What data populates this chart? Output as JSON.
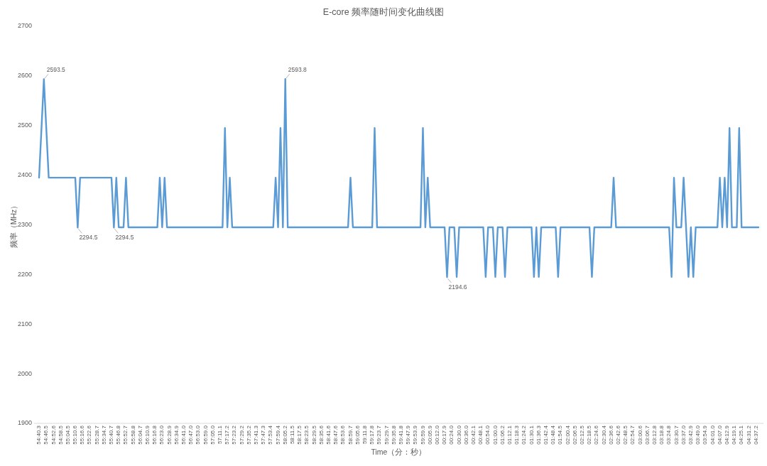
{
  "chart_data": {
    "type": "line",
    "title": "E-core 频率随时间变化曲线图",
    "xlabel": "Time（分：秒）",
    "ylabel": "频率（MHz）",
    "categories": [
      "54:40.3",
      null,
      null,
      "54:46.5",
      null,
      null,
      "54:52.6",
      null,
      null,
      "54:58.5",
      null,
      null,
      "55:04.5",
      null,
      null,
      "55:10.6",
      null,
      null,
      "55:16.6",
      null,
      null,
      "55:22.6",
      null,
      null,
      "55:28.7",
      null,
      null,
      "55:34.7",
      null,
      null,
      "55:40.7",
      null,
      null,
      "55:46.8",
      null,
      null,
      "55:52.7",
      null,
      null,
      "55:58.8",
      null,
      null,
      "56:04.7",
      null,
      null,
      "56:10.9",
      null,
      null,
      "56:16.8",
      null,
      null,
      "56:23.0",
      null,
      null,
      "56:28.9",
      null,
      null,
      "56:34.9",
      null,
      null,
      "56:41.0",
      null,
      null,
      "56:47.0",
      null,
      null,
      "56:53.0",
      null,
      null,
      "56:59.0",
      null,
      null,
      "57:05.0",
      null,
      null,
      "57:11.1",
      null,
      null,
      "57:17.2",
      null,
      null,
      "57:23.2",
      null,
      null,
      "57:29.2",
      null,
      null,
      "57:35.2",
      null,
      null,
      "57:41.3",
      null,
      null,
      "57:47.3",
      null,
      null,
      "57:53.4",
      null,
      null,
      "57:59.4",
      null,
      null,
      "58:05.2",
      null,
      null,
      "58:11.5",
      null,
      null,
      "58:17.5",
      null,
      null,
      "58:23.5",
      null,
      null,
      "58:29.5",
      null,
      null,
      "58:35.6",
      null,
      null,
      "58:41.6",
      null,
      null,
      "58:47.6",
      null,
      null,
      "58:53.6",
      null,
      null,
      "58:59.7",
      null,
      null,
      "59:05.6",
      null,
      null,
      "59:11.8",
      null,
      null,
      "59:17.8",
      null,
      null,
      "59:23.7",
      null,
      null,
      "59:29.7",
      null,
      null,
      "59:35.8",
      null,
      null,
      "59:41.8",
      null,
      null,
      "59:47.9",
      null,
      null,
      "59:53.9",
      null,
      null,
      "59:59.9",
      null,
      null,
      "00:05.9",
      null,
      null,
      "00:12.0",
      null,
      null,
      "00:17.9",
      null,
      null,
      "00:24.0",
      null,
      null,
      "00:30.0",
      null,
      null,
      "00:36.0",
      null,
      null,
      "00:42.1",
      null,
      null,
      "00:48.1",
      null,
      null,
      "00:54.0",
      null,
      null,
      "01:00.0",
      null,
      null,
      "01:06.2",
      null,
      null,
      "01:12.1",
      null,
      null,
      "01:18.3",
      null,
      null,
      "01:24.2",
      null,
      null,
      "01:30.1",
      null,
      null,
      "01:36.3",
      null,
      null,
      "01:42.4",
      null,
      null,
      "01:48.4",
      null,
      null,
      "01:54.5",
      null,
      null,
      "02:00.4",
      null,
      null,
      "02:06.5",
      null,
      null,
      "02:12.5",
      null,
      null,
      "02:18.5",
      null,
      null,
      "02:24.6",
      null,
      null,
      "02:30.4",
      null,
      null,
      "02:36.6",
      null,
      null,
      "02:42.6",
      null,
      null,
      "02:48.5",
      null,
      null,
      "02:54.7",
      null,
      null,
      "03:00.6",
      null,
      null,
      "03:06.7",
      null,
      null,
      "03:12.8",
      null,
      null,
      "03:18.8",
      null,
      null,
      "03:24.8",
      null,
      null,
      "03:30.7",
      null,
      null,
      "03:37.0",
      null,
      null,
      "03:42.9",
      null,
      null,
      "03:49.0",
      null,
      null,
      "03:54.9",
      null,
      null,
      "04:01.0",
      null,
      null,
      "04:07.0",
      null,
      null,
      "04:12.9",
      null,
      null,
      "04:19.1",
      null,
      null,
      "04:25.1",
      null,
      null,
      "04:31.2",
      null,
      null,
      "04:37.2",
      null
    ],
    "series": [
      {
        "color": "#5b9bd5",
        "values": [
          2395,
          2494,
          2593.5,
          2494,
          2395,
          2395,
          2395,
          2395,
          2395,
          2395,
          2395,
          2395,
          2395,
          2395,
          2395,
          2395,
          2294.5,
          2395,
          2395,
          2395,
          2395,
          2395,
          2395,
          2395,
          2395,
          2395,
          2395,
          2395,
          2395,
          2395,
          2395,
          2294.5,
          2395,
          2295,
          2295,
          2295,
          2395,
          2295,
          2295,
          2295,
          2295,
          2295,
          2295,
          2295,
          2295,
          2295,
          2295,
          2295,
          2295,
          2295,
          2395,
          2295,
          2395,
          2295,
          2295,
          2295,
          2295,
          2295,
          2295,
          2295,
          2295,
          2295,
          2295,
          2295,
          2295,
          2295,
          2295,
          2295,
          2295,
          2295,
          2295,
          2295,
          2295,
          2295,
          2295,
          2295,
          2295,
          2495,
          2295,
          2395,
          2295,
          2295,
          2295,
          2295,
          2295,
          2295,
          2295,
          2295,
          2295,
          2295,
          2295,
          2295,
          2295,
          2295,
          2295,
          2295,
          2295,
          2295,
          2395,
          2295,
          2495,
          2295,
          2593.8,
          2295,
          2295,
          2295,
          2295,
          2295,
          2295,
          2295,
          2295,
          2295,
          2295,
          2295,
          2295,
          2295,
          2295,
          2295,
          2295,
          2295,
          2295,
          2295,
          2295,
          2295,
          2295,
          2295,
          2295,
          2295,
          2295,
          2395,
          2295,
          2295,
          2295,
          2295,
          2295,
          2295,
          2295,
          2295,
          2295,
          2495,
          2295,
          2295,
          2295,
          2295,
          2295,
          2295,
          2295,
          2295,
          2295,
          2295,
          2295,
          2295,
          2295,
          2295,
          2295,
          2295,
          2295,
          2295,
          2295,
          2495,
          2295,
          2395,
          2295,
          2295,
          2295,
          2295,
          2295,
          2295,
          2295,
          2194.6,
          2295,
          2295,
          2295,
          2195,
          2295,
          2295,
          2295,
          2295,
          2295,
          2295,
          2295,
          2295,
          2295,
          2295,
          2295,
          2195,
          2295,
          2295,
          2295,
          2195,
          2295,
          2295,
          2295,
          2195,
          2295,
          2295,
          2295,
          2295,
          2295,
          2295,
          2295,
          2295,
          2295,
          2295,
          2295,
          2195,
          2295,
          2195,
          2295,
          2295,
          2295,
          2295,
          2295,
          2295,
          2295,
          2195,
          2295,
          2295,
          2295,
          2295,
          2295,
          2295,
          2295,
          2295,
          2295,
          2295,
          2295,
          2295,
          2295,
          2195,
          2295,
          2295,
          2295,
          2295,
          2295,
          2295,
          2295,
          2295,
          2395,
          2295,
          2295,
          2295,
          2295,
          2295,
          2295,
          2295,
          2295,
          2295,
          2295,
          2295,
          2295,
          2295,
          2295,
          2295,
          2295,
          2295,
          2295,
          2295,
          2295,
          2295,
          2295,
          2295,
          2195,
          2395,
          2295,
          2295,
          2295,
          2395,
          2295,
          2195,
          2295,
          2195,
          2295,
          2295,
          2295,
          2295,
          2295,
          2295,
          2295,
          2295,
          2295,
          2295,
          2395,
          2295,
          2395,
          2295,
          2495,
          2295,
          2295,
          2295,
          2495,
          2295,
          2295,
          2295,
          2295,
          2295,
          2295,
          2295,
          2295
        ],
        "value_labels": [
          null,
          null,
          "2593.5",
          null,
          null,
          null,
          null,
          null,
          null,
          null,
          null,
          null,
          null,
          null,
          null,
          null,
          "2294.5",
          null,
          null,
          null,
          null,
          null,
          null,
          null,
          null,
          null,
          null,
          null,
          null,
          null,
          null,
          "2294.5",
          null,
          null,
          null,
          null,
          null,
          null,
          null,
          null,
          null,
          null,
          null,
          null,
          null,
          null,
          null,
          null,
          null,
          null,
          null,
          null,
          null,
          null,
          null,
          null,
          null,
          null,
          null,
          null,
          null,
          null,
          null,
          null,
          null,
          null,
          null,
          null,
          null,
          null,
          null,
          null,
          null,
          null,
          null,
          null,
          null,
          null,
          null,
          null,
          null,
          null,
          null,
          null,
          null,
          null,
          null,
          null,
          null,
          null,
          null,
          null,
          null,
          null,
          null,
          null,
          null,
          null,
          null,
          null,
          null,
          null,
          "2593.8",
          null,
          null,
          null,
          null,
          null,
          null,
          null,
          null,
          null,
          null,
          null,
          null,
          null,
          null,
          null,
          null,
          null,
          null,
          null,
          null,
          null,
          null,
          null,
          null,
          null,
          null,
          null,
          null,
          null,
          null,
          null,
          null,
          null,
          null,
          null,
          null,
          null,
          null,
          null,
          null,
          null,
          null,
          null,
          null,
          null,
          null,
          null,
          null,
          null,
          null,
          null,
          null,
          null,
          null,
          null,
          null,
          null,
          null,
          null,
          null,
          null,
          null,
          null,
          null,
          null,
          null,
          "2194.6",
          null,
          null,
          null,
          null,
          null,
          null,
          null,
          null,
          null,
          null,
          null,
          null,
          null,
          null,
          null,
          null,
          null,
          null,
          null,
          null,
          null,
          null,
          null,
          null,
          null,
          null,
          null,
          null,
          null,
          null,
          null,
          null,
          null,
          null,
          null,
          null,
          null,
          null,
          null,
          null,
          null,
          null,
          null,
          null,
          null,
          null,
          null,
          null,
          null,
          null,
          null,
          null,
          null,
          null,
          null,
          null,
          null,
          null,
          null,
          null,
          null,
          null,
          null,
          null,
          null,
          null,
          null,
          null,
          null,
          null,
          null,
          null,
          null,
          null,
          null,
          null,
          null,
          null,
          null,
          null,
          null,
          null,
          null,
          null,
          null,
          null,
          null,
          null,
          null,
          null,
          null,
          null,
          null,
          null,
          null,
          null,
          null,
          null,
          null,
          null,
          null,
          null,
          null,
          null,
          null,
          null,
          null,
          null,
          null,
          null,
          null,
          null,
          null,
          null,
          null,
          null,
          null,
          null,
          null,
          null,
          null,
          null,
          null,
          null,
          null,
          null,
          null,
          null,
          null
        ]
      }
    ],
    "ylim": [
      1900,
      2700
    ],
    "yticks": [
      1900,
      2000,
      2100,
      2200,
      2300,
      2400,
      2500,
      2600,
      2700
    ],
    "line_style": "solid"
  }
}
